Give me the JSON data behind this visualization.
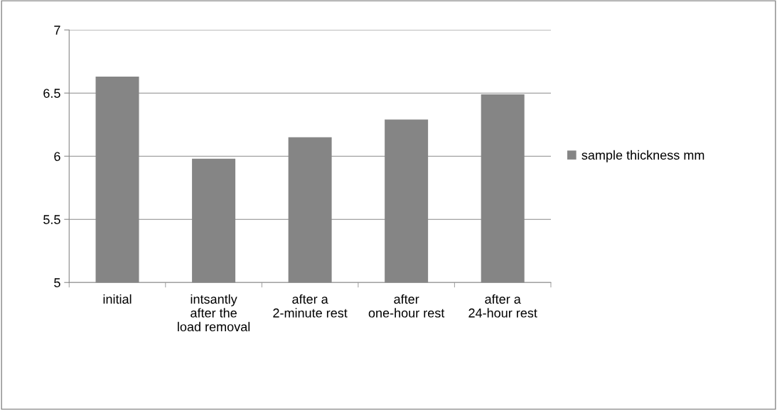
{
  "chart_data": {
    "type": "bar",
    "categories": [
      "initial",
      "intsantly after the load removal",
      "after a 2-minute rest",
      "after one-hour rest",
      "after a 24-hour rest"
    ],
    "series": [
      {
        "name": "sample thickness mm",
        "color": "#858585",
        "values": [
          6.63,
          5.98,
          6.15,
          6.29,
          6.49
        ]
      }
    ],
    "ylim": [
      5,
      7
    ],
    "yticks": [
      5,
      5.5,
      6,
      6.5,
      7
    ],
    "grid": "y",
    "legend": "right"
  }
}
